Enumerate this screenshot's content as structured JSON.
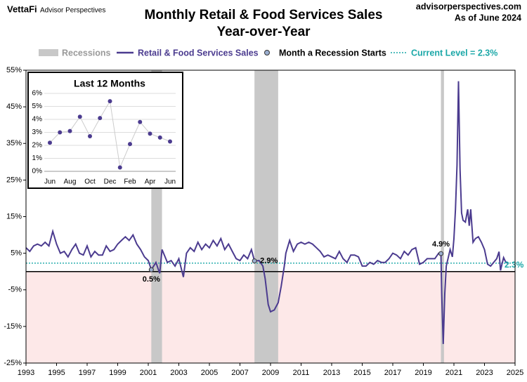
{
  "header": {
    "brand": "VettaFi",
    "brand_sub": "Advisor Perspectives",
    "site": "advisorperspectives.com",
    "as_of": "As of June 2024"
  },
  "chart_data": [
    {
      "type": "line",
      "title": "Monthly Retail & Food Services Sales",
      "subtitle": "Year-over-Year",
      "xlim": [
        1993,
        2025
      ],
      "xticks": [
        1993,
        1995,
        1997,
        1999,
        2001,
        2003,
        2005,
        2007,
        2009,
        2011,
        2013,
        2015,
        2017,
        2019,
        2021,
        2023,
        2025
      ],
      "ylim": [
        -25,
        55
      ],
      "yticks": [
        {
          "value": -25,
          "label": "-25%"
        },
        {
          "value": -15,
          "label": "-15%"
        },
        {
          "value": -5,
          "label": "-5%"
        },
        {
          "value": 5,
          "label": "5%"
        },
        {
          "value": 15,
          "label": "15%"
        },
        {
          "value": 25,
          "label": "25%"
        },
        {
          "value": 35,
          "label": "35%"
        },
        {
          "value": 45,
          "label": "45%"
        },
        {
          "value": 55,
          "label": "55%"
        }
      ],
      "recessions": {
        "name": "Recessions",
        "color": "#c8c8c8",
        "spans": [
          [
            2001.2,
            2001.9
          ],
          [
            2007.95,
            2009.5
          ],
          [
            2020.15,
            2020.35
          ]
        ]
      },
      "series": [
        {
          "name": "Retail & Food Services Sales",
          "color": "#4b3b8f",
          "x": [
            1993,
            1993.25,
            1993.5,
            1993.75,
            1994,
            1994.25,
            1994.5,
            1994.75,
            1995,
            1995.25,
            1995.5,
            1995.75,
            1996,
            1996.25,
            1996.5,
            1996.75,
            1997,
            1997.25,
            1997.5,
            1997.75,
            1998,
            1998.25,
            1998.5,
            1998.75,
            1999,
            1999.25,
            1999.5,
            1999.75,
            2000,
            2000.25,
            2000.5,
            2000.75,
            2001,
            2001.2,
            2001.5,
            2001.75,
            2001.9,
            2002.25,
            2002.5,
            2002.75,
            2003,
            2003.3,
            2003.5,
            2003.75,
            2004,
            2004.25,
            2004.5,
            2004.75,
            2005,
            2005.25,
            2005.5,
            2005.75,
            2006,
            2006.25,
            2006.5,
            2006.75,
            2007,
            2007.25,
            2007.5,
            2007.75,
            2007.95,
            2008.25,
            2008.5,
            2008.65,
            2008.85,
            2009,
            2009.25,
            2009.5,
            2009.7,
            2009.9,
            2010,
            2010.25,
            2010.5,
            2010.75,
            2011,
            2011.25,
            2011.5,
            2011.75,
            2012,
            2012.25,
            2012.5,
            2012.75,
            2013,
            2013.25,
            2013.5,
            2013.75,
            2014,
            2014.25,
            2014.5,
            2014.75,
            2015,
            2015.25,
            2015.5,
            2015.75,
            2016,
            2016.25,
            2016.5,
            2016.75,
            2017,
            2017.25,
            2017.5,
            2017.75,
            2018,
            2018.25,
            2018.5,
            2018.75,
            2019,
            2019.25,
            2019.5,
            2019.75,
            2020,
            2020.15,
            2020.2,
            2020.3,
            2020.4,
            2020.5,
            2020.75,
            2020.9,
            2021,
            2021.1,
            2021.2,
            2021.3,
            2021.4,
            2021.5,
            2021.6,
            2021.75,
            2021.9,
            2022,
            2022.1,
            2022.25,
            2022.4,
            2022.6,
            2022.8,
            2023,
            2023.2,
            2023.4,
            2023.6,
            2023.8,
            2023.95,
            2024.05,
            2024.15,
            2024.25,
            2024.35,
            2024.4,
            2024.5
          ],
          "values": [
            6.5,
            5.5,
            7,
            7.5,
            7,
            8,
            7,
            11,
            7.5,
            5,
            5.5,
            4,
            6,
            7.5,
            5,
            4.5,
            7,
            4,
            5.5,
            4.5,
            4.5,
            7,
            5.5,
            6,
            7.5,
            8.5,
            9.5,
            8.5,
            10,
            7.5,
            6,
            4,
            3,
            0.5,
            2.5,
            -0.5,
            6,
            2.5,
            3,
            1.5,
            3.5,
            -1.5,
            5,
            6.5,
            5.5,
            8,
            6,
            7.5,
            6.5,
            8.5,
            7,
            9,
            6,
            7.5,
            5.5,
            3.5,
            3,
            4.5,
            3.5,
            6,
            2.9,
            3,
            1.5,
            -2,
            -9,
            -11,
            -10.5,
            -8.5,
            -4,
            1.5,
            5,
            8.5,
            5.5,
            7.5,
            8,
            7.5,
            8,
            7.5,
            6.5,
            5.5,
            4,
            4.5,
            4,
            3.5,
            5.5,
            3.5,
            2.5,
            4.5,
            4.5,
            4,
            1.5,
            1.5,
            2.5,
            2,
            3,
            2.5,
            2.5,
            3.5,
            5,
            4.5,
            3.5,
            5.5,
            4.5,
            6,
            6.5,
            2,
            2.5,
            3.5,
            3.5,
            3.5,
            5,
            4.9,
            -6,
            -19.8,
            -6,
            1.5,
            6,
            4,
            9,
            17,
            29,
            52,
            28,
            16,
            14,
            13.5,
            17,
            12.5,
            17,
            8,
            9,
            9.5,
            8,
            6,
            2,
            1.5,
            2.5,
            3.5,
            5.4,
            0.3,
            2.1,
            3.8,
            2.9,
            2.6,
            2.3
          ]
        },
        {
          "name": "Month a Recession Starts",
          "color": "#9aaed0",
          "x": [
            2001.2,
            2007.95,
            2020.15
          ],
          "values": [
            0.5,
            2.9,
            4.9
          ],
          "value_labels": [
            "0.5%",
            "2.9%",
            "4.9%"
          ]
        }
      ],
      "reference_line": {
        "name": "Current Level = 2.3%",
        "value": 2.3,
        "label": "2.3%",
        "color": "#1aa7a7"
      }
    },
    {
      "type": "line",
      "title": "Last 12 Months",
      "color": "#4b3b8f",
      "line_color": "#cccccc",
      "categories": [
        "Jun",
        null,
        "Aug",
        null,
        "Oct",
        null,
        "Dec",
        null,
        "Feb",
        null,
        "Apr",
        null,
        "Jun"
      ],
      "values": [
        2.2,
        3.0,
        3.1,
        4.2,
        2.7,
        4.1,
        5.4,
        0.3,
        2.1,
        3.8,
        2.9,
        2.6,
        2.3
      ],
      "ylim": [
        0,
        6
      ],
      "yticks": [
        {
          "value": 0,
          "label": "0%"
        },
        {
          "value": 1,
          "label": "1%"
        },
        {
          "value": 2,
          "label": "2%"
        },
        {
          "value": 3,
          "label": "3%"
        },
        {
          "value": 4,
          "label": "4%"
        },
        {
          "value": 5,
          "label": "5%"
        },
        {
          "value": 6,
          "label": "6%"
        }
      ],
      "grid": true
    }
  ]
}
